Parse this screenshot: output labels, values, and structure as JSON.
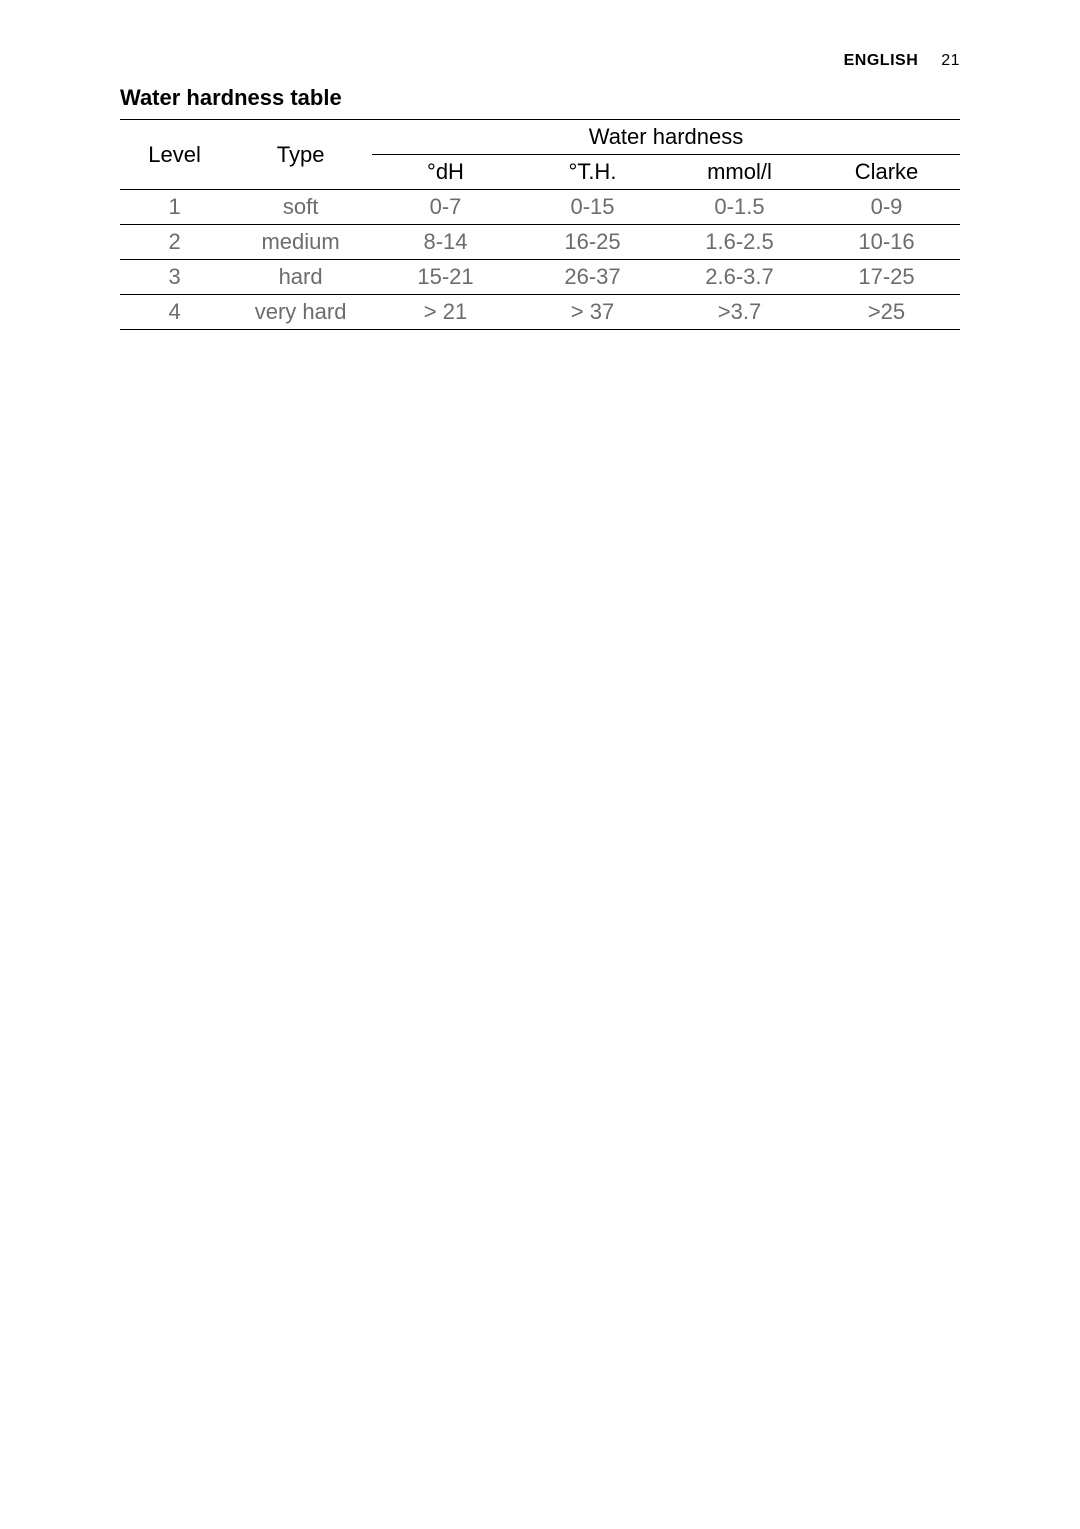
{
  "header": {
    "language_label": "ENGLISH",
    "page_number": "21"
  },
  "table_title": "Water hardness table",
  "table": {
    "type": "table",
    "title_fontsize": 22,
    "header_fontsize": 22,
    "data_fontsize": 22,
    "header_color": "#000000",
    "data_color": "#6c6c6c",
    "border_color": "#000000",
    "background_color": "#ffffff",
    "columns": {
      "level_header": "Level",
      "type_header": "Type",
      "spanning_header": "Water hardness",
      "dh_header": "°dH",
      "th_header": "°T.H.",
      "mmol_header": "mmol/l",
      "clarke_header": "Clarke"
    },
    "column_widths_pct": [
      13,
      17,
      17.5,
      17.5,
      17.5,
      17.5
    ],
    "rows": [
      {
        "level": "1",
        "type": "soft",
        "dh": "0-7",
        "th": "0-15",
        "mmol": "0-1.5",
        "clarke": "0-9"
      },
      {
        "level": "2",
        "type": "medium",
        "dh": "8-14",
        "th": "16-25",
        "mmol": "1.6-2.5",
        "clarke": "10-16"
      },
      {
        "level": "3",
        "type": "hard",
        "dh": "15-21",
        "th": "26-37",
        "mmol": "2.6-3.7",
        "clarke": "17-25"
      },
      {
        "level": "4",
        "type": "very hard",
        "dh": "> 21",
        "th": "> 37",
        "mmol": ">3.7",
        "clarke": ">25"
      }
    ]
  }
}
